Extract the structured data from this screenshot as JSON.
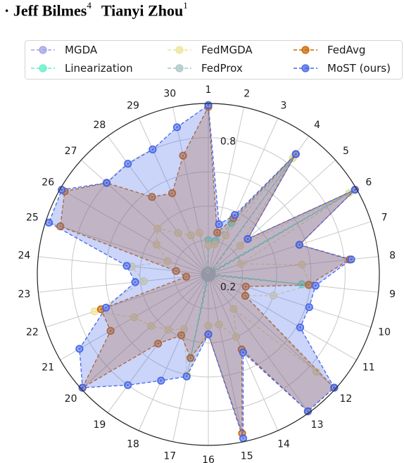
{
  "header": {
    "marker": "·",
    "author1": "Jeff Bilmes",
    "author1_sup": "4",
    "author2": "Tianyi Zhou",
    "author2_sup": "1"
  },
  "chart_data": {
    "type": "radar",
    "categories": [
      "1",
      "2",
      "3",
      "4",
      "5",
      "6",
      "7",
      "8",
      "9",
      "10",
      "11",
      "12",
      "13",
      "14",
      "15",
      "16",
      "17",
      "18",
      "19",
      "20",
      "21",
      "22",
      "23",
      "24",
      "25",
      "26",
      "27",
      "28",
      "29",
      "30"
    ],
    "radial_tick_labels": [
      "0.2",
      "0.8"
    ],
    "rlim": [
      0,
      1
    ],
    "grid": true,
    "legend_position": "top",
    "series": [
      {
        "name": "MGDA",
        "color": "#9fa3e0",
        "fill": false,
        "values": [
          0.02,
          0.02,
          0.02,
          0.02,
          0.02,
          0.02,
          0.02,
          0.02,
          0.02,
          0.02,
          0.02,
          0.02,
          0.02,
          0.02,
          0.02,
          0.02,
          0.02,
          0.02,
          0.02,
          0.02,
          0.02,
          0.02,
          0.02,
          0.02,
          0.02,
          0.02,
          0.02,
          0.02,
          0.02,
          0.02
        ]
      },
      {
        "name": "Linearization",
        "color": "#5ef0c8",
        "fill": false,
        "values": [
          0.2,
          0.2,
          0.33,
          0.84,
          0.02,
          0.95,
          0.02,
          0.02,
          0.55,
          0.02,
          0.02,
          0.02,
          0.02,
          0.02,
          0.02,
          0.02,
          0.5,
          0.02,
          0.02,
          0.02,
          0.02,
          0.02,
          0.02,
          0.02,
          0.02,
          0.02,
          0.02,
          0.02,
          0.02,
          0.02
        ]
      },
      {
        "name": "FedMGDA",
        "color": "#ece49a",
        "fill": false,
        "values": [
          0.17,
          0.18,
          0.25,
          0.84,
          0.25,
          0.95,
          0.2,
          0.55,
          0.6,
          0.4,
          0.25,
          0.85,
          0.25,
          0.4,
          0.3,
          0.3,
          0.6,
          0.35,
          0.4,
          0.45,
          0.5,
          0.7,
          0.38,
          0.45,
          0.25,
          0.35,
          0.4,
          0.3,
          0.25,
          0.25
        ]
      },
      {
        "name": "FedProx",
        "color": "#a9c6c3",
        "fill": false,
        "values": [
          0.02,
          0.02,
          0.02,
          0.02,
          0.02,
          0.02,
          0.02,
          0.02,
          0.02,
          0.02,
          0.02,
          0.02,
          0.02,
          0.02,
          0.02,
          0.02,
          0.02,
          0.02,
          0.02,
          0.02,
          0.02,
          0.02,
          0.02,
          0.02,
          0.02,
          0.02,
          0.02,
          0.02,
          0.02,
          0.02
        ]
      },
      {
        "name": "FedAvg",
        "color": "#cc6600",
        "fill": true,
        "values": [
          0.98,
          0.25,
          0.36,
          0.87,
          0.31,
          0.99,
          0.56,
          0.83,
          0.59,
          0.23,
          0.25,
          0.99,
          0.99,
          0.48,
          0.95,
          0.35,
          0.5,
          0.39,
          0.5,
          0.99,
          0.66,
          0.66,
          0.13,
          0.19,
          0.91,
          0.97,
          0.8,
          0.56,
          0.52,
          0.71
        ]
      },
      {
        "name": "MoST (ours)",
        "color": "#4466e8",
        "fill": true,
        "values": [
          0.99,
          0.3,
          0.38,
          0.87,
          0.31,
          0.99,
          0.56,
          0.84,
          0.63,
          0.62,
          0.62,
          0.99,
          0.99,
          0.5,
          0.98,
          0.35,
          0.61,
          0.68,
          0.8,
          0.99,
          0.87,
          0.63,
          0.43,
          0.48,
          0.98,
          0.99,
          0.8,
          0.8,
          0.8,
          0.88
        ]
      }
    ]
  }
}
